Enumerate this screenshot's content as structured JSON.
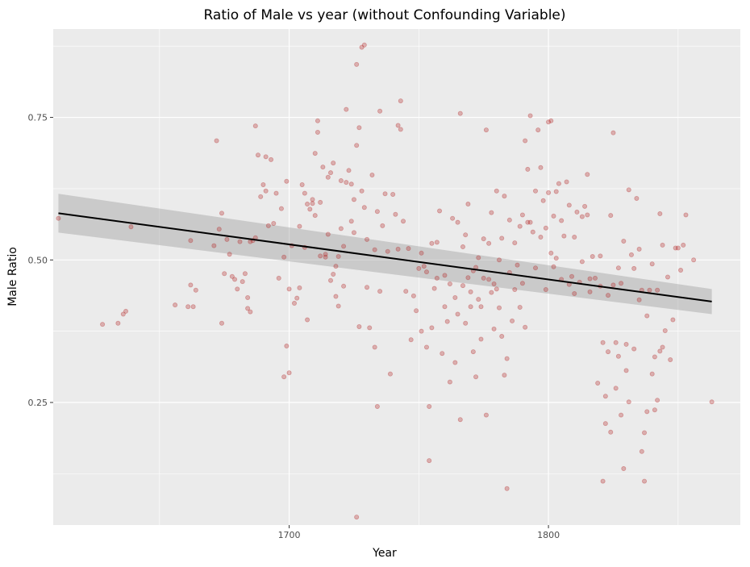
{
  "chart_data": {
    "type": "scatter",
    "title": "Ratio of Male vs year (without Confounding Variable)",
    "xlabel": "Year",
    "ylabel": "Male Ratio",
    "xlim": [
      1609,
      1874
    ],
    "ylim": [
      0.035,
      0.905
    ],
    "x_ticks": [
      1700,
      1800
    ],
    "x_tick_labels": [
      "1700",
      "1800"
    ],
    "x_minor_ticks": [
      1650,
      1750,
      1850
    ],
    "y_ticks": [
      0.25,
      0.5,
      0.75
    ],
    "y_tick_labels": [
      "0.25",
      "0.50",
      "0.75"
    ],
    "y_minor_ticks": [
      0.125,
      0.375,
      0.625,
      0.875
    ],
    "grid": true,
    "legend": "none",
    "colors": {
      "panel": "#ebebeb",
      "grid": "#ffffff",
      "point": "#b22222",
      "trend": "#000000",
      "ribbon": "#999999"
    },
    "trend": {
      "method": "linear",
      "x": [
        1611,
        1863
      ],
      "y": [
        0.582,
        0.427
      ],
      "ci_lower": [
        0.548,
        0.405
      ],
      "ci_upper": [
        0.616,
        0.449
      ]
    },
    "points": [
      [
        1611,
        0.573
      ],
      [
        1628,
        0.387
      ],
      [
        1634,
        0.389
      ],
      [
        1636,
        0.405
      ],
      [
        1637,
        0.41
      ],
      [
        1639,
        0.558
      ],
      [
        1656,
        0.421
      ],
      [
        1661,
        0.418
      ],
      [
        1662,
        0.534
      ],
      [
        1662,
        0.456
      ],
      [
        1663,
        0.418
      ],
      [
        1664,
        0.447
      ],
      [
        1671,
        0.525
      ],
      [
        1672,
        0.709
      ],
      [
        1673,
        0.554
      ],
      [
        1674,
        0.582
      ],
      [
        1674,
        0.389
      ],
      [
        1675,
        0.476
      ],
      [
        1676,
        0.536
      ],
      [
        1677,
        0.51
      ],
      [
        1678,
        0.471
      ],
      [
        1679,
        0.466
      ],
      [
        1680,
        0.449
      ],
      [
        1681,
        0.532
      ],
      [
        1682,
        0.462
      ],
      [
        1683,
        0.476
      ],
      [
        1684,
        0.434
      ],
      [
        1684,
        0.415
      ],
      [
        1685,
        0.409
      ],
      [
        1685,
        0.532
      ],
      [
        1686,
        0.534
      ],
      [
        1687,
        0.735
      ],
      [
        1687,
        0.539
      ],
      [
        1688,
        0.684
      ],
      [
        1689,
        0.611
      ],
      [
        1690,
        0.632
      ],
      [
        1691,
        0.681
      ],
      [
        1691,
        0.621
      ],
      [
        1692,
        0.56
      ],
      [
        1693,
        0.676
      ],
      [
        1694,
        0.564
      ],
      [
        1695,
        0.617
      ],
      [
        1696,
        0.468
      ],
      [
        1697,
        0.59
      ],
      [
        1698,
        0.505
      ],
      [
        1698,
        0.295
      ],
      [
        1699,
        0.638
      ],
      [
        1699,
        0.349
      ],
      [
        1700,
        0.449
      ],
      [
        1700,
        0.302
      ],
      [
        1701,
        0.525
      ],
      [
        1702,
        0.424
      ],
      [
        1703,
        0.433
      ],
      [
        1704,
        0.559
      ],
      [
        1704,
        0.451
      ],
      [
        1705,
        0.632
      ],
      [
        1706,
        0.617
      ],
      [
        1706,
        0.522
      ],
      [
        1707,
        0.395
      ],
      [
        1707,
        0.598
      ],
      [
        1708,
        0.589
      ],
      [
        1709,
        0.606
      ],
      [
        1709,
        0.599
      ],
      [
        1710,
        0.687
      ],
      [
        1710,
        0.578
      ],
      [
        1711,
        0.744
      ],
      [
        1711,
        0.724
      ],
      [
        1712,
        0.507
      ],
      [
        1712,
        0.601
      ],
      [
        1713,
        0.663
      ],
      [
        1714,
        0.51
      ],
      [
        1714,
        0.505
      ],
      [
        1715,
        0.645
      ],
      [
        1715,
        0.545
      ],
      [
        1716,
        0.464
      ],
      [
        1716,
        0.653
      ],
      [
        1717,
        0.67
      ],
      [
        1717,
        0.475
      ],
      [
        1718,
        0.489
      ],
      [
        1718,
        0.436
      ],
      [
        1719,
        0.419
      ],
      [
        1719,
        0.506
      ],
      [
        1720,
        0.639
      ],
      [
        1720,
        0.555
      ],
      [
        1721,
        0.524
      ],
      [
        1721,
        0.454
      ],
      [
        1722,
        0.764
      ],
      [
        1722,
        0.636
      ],
      [
        1723,
        0.657
      ],
      [
        1724,
        0.568
      ],
      [
        1724,
        0.633
      ],
      [
        1725,
        0.606
      ],
      [
        1725,
        0.548
      ],
      [
        1726,
        0.701
      ],
      [
        1726,
        0.843
      ],
      [
        1726,
        0.049
      ],
      [
        1727,
        0.732
      ],
      [
        1727,
        0.383
      ],
      [
        1728,
        0.873
      ],
      [
        1728,
        0.621
      ],
      [
        1729,
        0.592
      ],
      [
        1729,
        0.877
      ],
      [
        1730,
        0.536
      ],
      [
        1730,
        0.452
      ],
      [
        1731,
        0.381
      ],
      [
        1732,
        0.649
      ],
      [
        1733,
        0.347
      ],
      [
        1733,
        0.518
      ],
      [
        1734,
        0.243
      ],
      [
        1734,
        0.585
      ],
      [
        1735,
        0.761
      ],
      [
        1735,
        0.445
      ],
      [
        1736,
        0.56
      ],
      [
        1737,
        0.616
      ],
      [
        1738,
        0.515
      ],
      [
        1739,
        0.3
      ],
      [
        1740,
        0.615
      ],
      [
        1741,
        0.58
      ],
      [
        1742,
        0.736
      ],
      [
        1742,
        0.519
      ],
      [
        1743,
        0.779
      ],
      [
        1743,
        0.729
      ],
      [
        1744,
        0.568
      ],
      [
        1745,
        0.445
      ],
      [
        1746,
        0.52
      ],
      [
        1747,
        0.36
      ],
      [
        1748,
        0.437
      ],
      [
        1749,
        0.411
      ],
      [
        1750,
        0.485
      ],
      [
        1751,
        0.512
      ],
      [
        1751,
        0.375
      ],
      [
        1752,
        0.489
      ],
      [
        1753,
        0.347
      ],
      [
        1753,
        0.479
      ],
      [
        1754,
        0.243
      ],
      [
        1754,
        0.148
      ],
      [
        1755,
        0.529
      ],
      [
        1755,
        0.381
      ],
      [
        1756,
        0.45
      ],
      [
        1757,
        0.531
      ],
      [
        1757,
        0.468
      ],
      [
        1758,
        0.586
      ],
      [
        1759,
        0.336
      ],
      [
        1760,
        0.418
      ],
      [
        1760,
        0.473
      ],
      [
        1761,
        0.392
      ],
      [
        1762,
        0.458
      ],
      [
        1762,
        0.286
      ],
      [
        1763,
        0.573
      ],
      [
        1764,
        0.434
      ],
      [
        1764,
        0.32
      ],
      [
        1765,
        0.405
      ],
      [
        1765,
        0.566
      ],
      [
        1766,
        0.757
      ],
      [
        1766,
        0.22
      ],
      [
        1767,
        0.455
      ],
      [
        1767,
        0.523
      ],
      [
        1768,
        0.544
      ],
      [
        1768,
        0.389
      ],
      [
        1769,
        0.598
      ],
      [
        1769,
        0.469
      ],
      [
        1770,
        0.444
      ],
      [
        1770,
        0.418
      ],
      [
        1771,
        0.481
      ],
      [
        1771,
        0.339
      ],
      [
        1772,
        0.487
      ],
      [
        1772,
        0.295
      ],
      [
        1773,
        0.431
      ],
      [
        1773,
        0.504
      ],
      [
        1774,
        0.418
      ],
      [
        1774,
        0.361
      ],
      [
        1775,
        0.468
      ],
      [
        1775,
        0.537
      ],
      [
        1776,
        0.728
      ],
      [
        1776,
        0.228
      ],
      [
        1777,
        0.466
      ],
      [
        1777,
        0.529
      ],
      [
        1778,
        0.583
      ],
      [
        1778,
        0.443
      ],
      [
        1779,
        0.458
      ],
      [
        1779,
        0.379
      ],
      [
        1780,
        0.621
      ],
      [
        1780,
        0.449
      ],
      [
        1781,
        0.5
      ],
      [
        1781,
        0.416
      ],
      [
        1782,
        0.366
      ],
      [
        1782,
        0.538
      ],
      [
        1783,
        0.612
      ],
      [
        1783,
        0.298
      ],
      [
        1784,
        0.099
      ],
      [
        1784,
        0.327
      ],
      [
        1785,
        0.478
      ],
      [
        1785,
        0.57
      ],
      [
        1786,
        0.393
      ],
      [
        1787,
        0.53
      ],
      [
        1787,
        0.448
      ],
      [
        1788,
        0.491
      ],
      [
        1789,
        0.417
      ],
      [
        1789,
        0.559
      ],
      [
        1790,
        0.459
      ],
      [
        1790,
        0.579
      ],
      [
        1791,
        0.709
      ],
      [
        1791,
        0.382
      ],
      [
        1792,
        0.566
      ],
      [
        1792,
        0.659
      ],
      [
        1793,
        0.753
      ],
      [
        1793,
        0.566
      ],
      [
        1794,
        0.549
      ],
      [
        1795,
        0.486
      ],
      [
        1795,
        0.621
      ],
      [
        1796,
        0.728
      ],
      [
        1797,
        0.54
      ],
      [
        1797,
        0.662
      ],
      [
        1798,
        0.604
      ],
      [
        1799,
        0.556
      ],
      [
        1799,
        0.448
      ],
      [
        1800,
        0.742
      ],
      [
        1800,
        0.618
      ],
      [
        1801,
        0.744
      ],
      [
        1801,
        0.512
      ],
      [
        1802,
        0.488
      ],
      [
        1802,
        0.577
      ],
      [
        1803,
        0.503
      ],
      [
        1803,
        0.62
      ],
      [
        1804,
        0.634
      ],
      [
        1805,
        0.466
      ],
      [
        1805,
        0.569
      ],
      [
        1806,
        0.542
      ],
      [
        1807,
        0.637
      ],
      [
        1808,
        0.457
      ],
      [
        1808,
        0.596
      ],
      [
        1809,
        0.471
      ],
      [
        1810,
        0.441
      ],
      [
        1810,
        0.54
      ],
      [
        1811,
        0.584
      ],
      [
        1812,
        0.461
      ],
      [
        1813,
        0.497
      ],
      [
        1813,
        0.576
      ],
      [
        1814,
        0.594
      ],
      [
        1815,
        0.65
      ],
      [
        1815,
        0.579
      ],
      [
        1816,
        0.467
      ],
      [
        1816,
        0.444
      ],
      [
        1817,
        0.506
      ],
      [
        1818,
        0.468
      ],
      [
        1819,
        0.284
      ],
      [
        1820,
        0.454
      ],
      [
        1820,
        0.507
      ],
      [
        1821,
        0.112
      ],
      [
        1821,
        0.355
      ],
      [
        1822,
        0.261
      ],
      [
        1822,
        0.213
      ],
      [
        1823,
        0.438
      ],
      [
        1823,
        0.339
      ],
      [
        1824,
        0.578
      ],
      [
        1824,
        0.198
      ],
      [
        1825,
        0.456
      ],
      [
        1825,
        0.723
      ],
      [
        1826,
        0.355
      ],
      [
        1826,
        0.275
      ],
      [
        1827,
        0.486
      ],
      [
        1827,
        0.331
      ],
      [
        1828,
        0.459
      ],
      [
        1828,
        0.228
      ],
      [
        1829,
        0.533
      ],
      [
        1829,
        0.134
      ],
      [
        1830,
        0.352
      ],
      [
        1830,
        0.306
      ],
      [
        1831,
        0.623
      ],
      [
        1831,
        0.251
      ],
      [
        1832,
        0.509
      ],
      [
        1833,
        0.485
      ],
      [
        1833,
        0.344
      ],
      [
        1834,
        0.608
      ],
      [
        1835,
        0.43
      ],
      [
        1835,
        0.519
      ],
      [
        1836,
        0.164
      ],
      [
        1836,
        0.447
      ],
      [
        1837,
        0.197
      ],
      [
        1837,
        0.112
      ],
      [
        1838,
        0.402
      ],
      [
        1838,
        0.234
      ],
      [
        1839,
        0.447
      ],
      [
        1840,
        0.3
      ],
      [
        1840,
        0.493
      ],
      [
        1841,
        0.33
      ],
      [
        1841,
        0.237
      ],
      [
        1842,
        0.254
      ],
      [
        1842,
        0.447
      ],
      [
        1843,
        0.34
      ],
      [
        1843,
        0.581
      ],
      [
        1844,
        0.526
      ],
      [
        1844,
        0.347
      ],
      [
        1845,
        0.376
      ],
      [
        1846,
        0.47
      ],
      [
        1847,
        0.325
      ],
      [
        1848,
        0.395
      ],
      [
        1849,
        0.521
      ],
      [
        1850,
        0.521
      ],
      [
        1851,
        0.482
      ],
      [
        1852,
        0.526
      ],
      [
        1853,
        0.579
      ],
      [
        1856,
        0.5
      ],
      [
        1863,
        0.251
      ]
    ]
  }
}
